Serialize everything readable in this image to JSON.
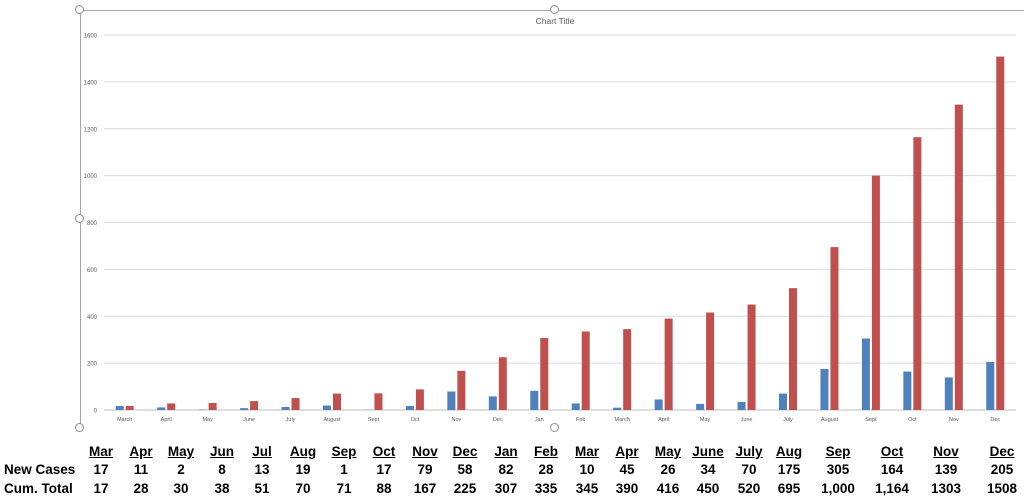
{
  "chart_data": {
    "type": "bar",
    "title": "Chart Title",
    "categories": [
      "March",
      "April",
      "May",
      "June",
      "July",
      "August",
      "Sept",
      "Oct",
      "Nov",
      "Dec",
      "Jan",
      "Feb",
      "March",
      "April",
      "May",
      "June",
      "July",
      "August",
      "Sept",
      "Oct",
      "Nov",
      "Dec"
    ],
    "series": [
      {
        "values": [
          17,
          11,
          2,
          8,
          13,
          19,
          1,
          17,
          79,
          58,
          82,
          28,
          10,
          45,
          26,
          34,
          70,
          175,
          305,
          164,
          139,
          205
        ],
        "color": "#4f81bd"
      },
      {
        "values": [
          17,
          28,
          30,
          38,
          51,
          70,
          71,
          88,
          167,
          225,
          307,
          335,
          345,
          390,
          416,
          450,
          520,
          695,
          1000,
          1164,
          1303,
          1508
        ],
        "color": "#c0504d"
      }
    ],
    "ylim": [
      0,
      1600
    ],
    "yticks": [
      0,
      200,
      400,
      600,
      800,
      1000,
      1200,
      1400,
      1600
    ],
    "grid": true
  },
  "table": {
    "headers": [
      "Mar",
      "Apr",
      "May",
      "Jun",
      "Jul",
      "Aug",
      "Sep",
      "Oct",
      "Nov",
      "Dec",
      "Jan",
      "Feb",
      "Mar",
      "Apr",
      "May",
      "June",
      "July",
      "Aug",
      "Sep",
      "Oct",
      "Nov",
      "Dec"
    ],
    "row_labels": [
      "New Cases",
      "Cum. Total"
    ],
    "new_cases": [
      "17",
      "11",
      "2",
      "8",
      "13",
      "19",
      "1",
      "17",
      "79",
      "58",
      "82",
      "28",
      "10",
      "45",
      "26",
      "34",
      "70",
      "175",
      "305",
      "164",
      "139",
      "205"
    ],
    "cum_total": [
      "17",
      "28",
      "30",
      "38",
      "51",
      "70",
      "71",
      "88",
      "167",
      "225",
      "307",
      "335",
      "345",
      "390",
      "416",
      "450",
      "520",
      "695",
      "1,000",
      "1,164",
      "1303",
      "1508"
    ]
  }
}
